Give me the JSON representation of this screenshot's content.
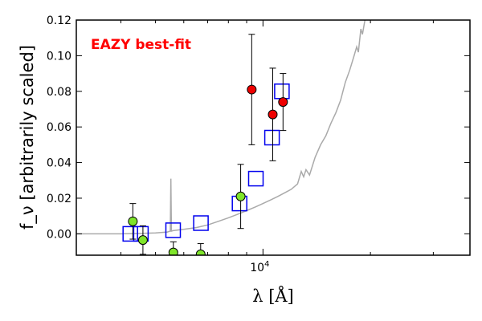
{
  "chart_data": {
    "type": "scatter",
    "title": "",
    "annotation": {
      "text": "EAZY best-fit",
      "color": "#ff0000",
      "placement": "top-left"
    },
    "xlabel": "λ [Å]",
    "ylabel": "f_ν [arbitrarily scaled]",
    "xscale": "log",
    "xlim": [
      3000,
      38000
    ],
    "ylim": [
      -0.012,
      0.12
    ],
    "y_ticks": [
      {
        "value": 0.0,
        "label": "0.00"
      },
      {
        "value": 0.02,
        "label": "0.02"
      },
      {
        "value": 0.04,
        "label": "0.04"
      },
      {
        "value": 0.06,
        "label": "0.06"
      },
      {
        "value": 0.08,
        "label": "0.08"
      },
      {
        "value": 0.1,
        "label": "0.10"
      },
      {
        "value": 0.12,
        "label": "0.12"
      }
    ],
    "x_major_ticks": [
      {
        "value": 10000,
        "label_base": "10",
        "label_exp": "4"
      }
    ],
    "x_minor_ticks": [
      4000,
      5000,
      6000,
      7000,
      8000,
      9000,
      20000,
      30000
    ],
    "grid": false,
    "series": [
      {
        "kind": "line",
        "color": "#aaaaaa",
        "x": [
          3000,
          3500,
          4000,
          4500,
          5000,
          5400,
          5500,
          5520,
          5540,
          5600,
          6000,
          6500,
          7000,
          7500,
          8000,
          8500,
          9000,
          9500,
          10000,
          10500,
          11000,
          11500,
          12000,
          12500,
          12800,
          13000,
          13200,
          13500,
          14000,
          14500,
          15000,
          15500,
          16000,
          16500,
          17000,
          17500,
          18000,
          18300,
          18500,
          18800,
          19000,
          19500
        ],
        "y": [
          0.0,
          0.0,
          0.0,
          0.0002,
          0.0005,
          0.001,
          0.0015,
          0.031,
          0.0015,
          0.0018,
          0.0025,
          0.0035,
          0.005,
          0.007,
          0.009,
          0.011,
          0.013,
          0.015,
          0.017,
          0.019,
          0.021,
          0.023,
          0.025,
          0.028,
          0.035,
          0.032,
          0.036,
          0.033,
          0.043,
          0.05,
          0.055,
          0.062,
          0.068,
          0.075,
          0.085,
          0.092,
          0.1,
          0.105,
          0.102,
          0.115,
          0.112,
          0.125
        ]
      },
      {
        "kind": "boxes",
        "color": "#0000ee",
        "x": [
          4250,
          4550,
          5600,
          6700,
          8600,
          9550,
          10600,
          11300
        ],
        "y": [
          0.0,
          0.0,
          0.002,
          0.006,
          0.017,
          0.031,
          0.054,
          0.08
        ]
      },
      {
        "kind": "points",
        "fill": "#7fe52a",
        "x": [
          4320,
          4610,
          5610,
          6690,
          8660
        ],
        "y": [
          0.007,
          -0.0035,
          -0.0105,
          -0.0115,
          0.021
        ],
        "err": [
          0.01,
          0.008,
          0.006,
          0.006,
          0.018
        ]
      },
      {
        "kind": "points",
        "fill": "#ee0000",
        "x": [
          9300,
          10650,
          11380
        ],
        "y": [
          0.081,
          0.067,
          0.074
        ],
        "err": [
          0.031,
          0.026,
          0.016
        ]
      }
    ]
  }
}
